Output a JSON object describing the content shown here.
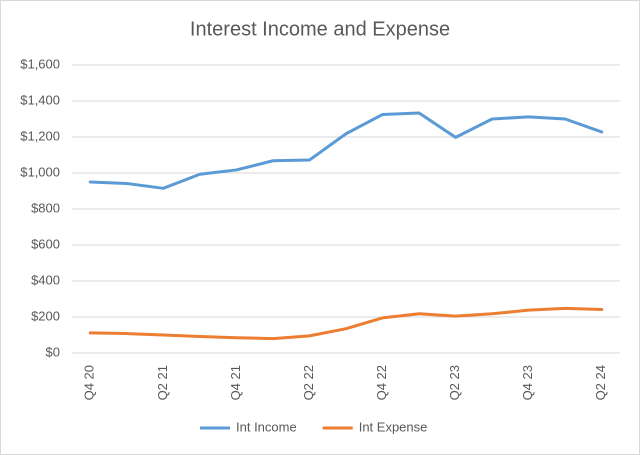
{
  "chart_data": {
    "type": "line",
    "title": "Interest Income and Expense",
    "categories": [
      "Q4 20",
      null,
      "Q2 21",
      null,
      "Q4 21",
      null,
      "Q2 22",
      null,
      "Q4 22",
      null,
      "Q2 23",
      null,
      "Q4 23",
      null,
      "Q2 24"
    ],
    "series": [
      {
        "name": "Int Income",
        "color": "#5b9bd5",
        "values": [
          950,
          942,
          915,
          993,
          1017,
          1068,
          1072,
          1218,
          1325,
          1333,
          1198,
          1300,
          1312,
          1300,
          1228
        ]
      },
      {
        "name": "Int Expense",
        "color": "#ed7d31",
        "values": [
          112,
          108,
          100,
          92,
          85,
          80,
          95,
          135,
          195,
          218,
          205,
          218,
          238,
          248,
          242
        ]
      }
    ],
    "ylim": [
      0,
      1600
    ],
    "yticks": [
      {
        "value": 0,
        "label": "$0"
      },
      {
        "value": 200,
        "label": "$200"
      },
      {
        "value": 400,
        "label": "$400"
      },
      {
        "value": 600,
        "label": "$600"
      },
      {
        "value": 800,
        "label": "$800"
      },
      {
        "value": 1000,
        "label": "$1,000"
      },
      {
        "value": 1200,
        "label": "$1,200"
      },
      {
        "value": 1400,
        "label": "$1,400"
      },
      {
        "value": 1600,
        "label": "$1,600"
      }
    ],
    "grid": true,
    "legend": "bottom"
  }
}
